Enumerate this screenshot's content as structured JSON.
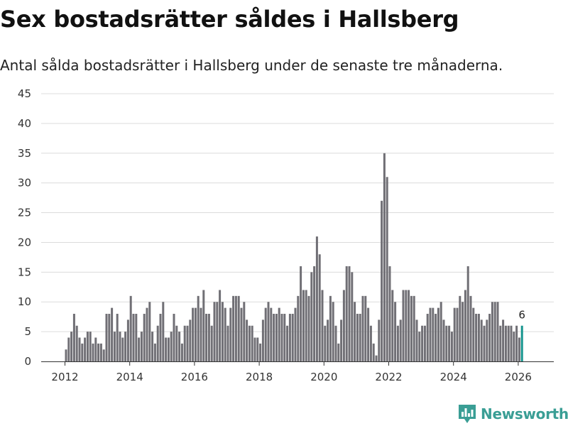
{
  "colors": {
    "bar": "#706f75",
    "highlight": "#16958e",
    "grid": "#dcdcdc",
    "brand": "#3a9e95"
  },
  "brand": {
    "name": "Newsworthy",
    "icon": "bar-chart-badge-icon"
  },
  "chart_data": {
    "type": "bar",
    "title": "Sex bostadsrätter såldes i Hallsberg",
    "subtitle": "Antal sålda bostadsrätter i Hallsberg under de senaste tre månaderna.",
    "xlabel": "",
    "ylabel": "",
    "ylim": [
      0,
      45
    ],
    "yticks": [
      0,
      5,
      10,
      15,
      20,
      25,
      30,
      35,
      40,
      45
    ],
    "xticks": [
      "2012",
      "2014",
      "2016",
      "2018",
      "2020",
      "2022",
      "2024",
      "2026"
    ],
    "x_start": "2012-01",
    "grid": "horizontal",
    "values": [
      2,
      4,
      5,
      8,
      6,
      4,
      3,
      4,
      5,
      5,
      3,
      4,
      3,
      3,
      2,
      8,
      8,
      9,
      5,
      8,
      5,
      4,
      5,
      7,
      11,
      8,
      8,
      4,
      5,
      8,
      9,
      10,
      5,
      3,
      6,
      8,
      10,
      4,
      4,
      5,
      8,
      6,
      5,
      3,
      6,
      6,
      7,
      9,
      9,
      11,
      9,
      12,
      8,
      8,
      6,
      10,
      10,
      12,
      10,
      9,
      6,
      9,
      11,
      11,
      11,
      9,
      10,
      7,
      6,
      6,
      4,
      4,
      3,
      7,
      9,
      10,
      9,
      8,
      8,
      9,
      8,
      8,
      6,
      8,
      8,
      9,
      11,
      16,
      12,
      12,
      11,
      15,
      16,
      21,
      18,
      12,
      6,
      7,
      11,
      10,
      6,
      3,
      7,
      12,
      16,
      16,
      15,
      10,
      8,
      8,
      11,
      11,
      9,
      6,
      3,
      1,
      7,
      27,
      35,
      31,
      16,
      12,
      10,
      6,
      7,
      12,
      12,
      12,
      11,
      11,
      7,
      5,
      6,
      6,
      8,
      9,
      9,
      8,
      9,
      10,
      7,
      6,
      6,
      5,
      9,
      9,
      11,
      10,
      12,
      16,
      11,
      9,
      8,
      8,
      7,
      6,
      7,
      8,
      10,
      10,
      10,
      6,
      7,
      6,
      6,
      6,
      5,
      6,
      4,
      6
    ],
    "highlight": {
      "index": 169,
      "value": 6,
      "label": "6"
    }
  }
}
